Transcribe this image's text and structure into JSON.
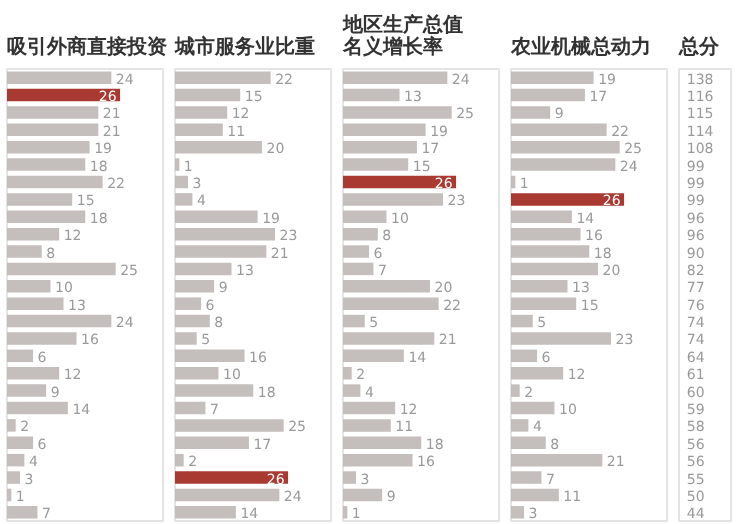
{
  "chart_data": [
    {
      "type": "bar",
      "orientation": "horizontal",
      "title": "吸引外商直接投资",
      "categories": [
        null,
        null,
        null,
        null,
        null,
        null,
        null,
        null,
        null,
        null,
        null,
        null,
        null,
        null,
        null,
        null,
        null,
        null,
        null,
        null,
        null,
        null,
        null,
        null,
        null,
        null
      ],
      "values": [
        24,
        26,
        21,
        21,
        19,
        18,
        22,
        15,
        18,
        12,
        8,
        25,
        10,
        13,
        24,
        16,
        6,
        12,
        9,
        14,
        2,
        6,
        4,
        3,
        1,
        7
      ],
      "colors": [
        "#c4bfbc",
        "#a83a32",
        "#c4bfbc",
        "#c4bfbc",
        "#c4bfbc",
        "#c4bfbc",
        "#c4bfbc",
        "#c4bfbc",
        "#c4bfbc",
        "#c4bfbc",
        "#c4bfbc",
        "#c4bfbc",
        "#c4bfbc",
        "#c4bfbc",
        "#c4bfbc",
        "#c4bfbc",
        "#c4bfbc",
        "#c4bfbc",
        "#c4bfbc",
        "#c4bfbc",
        "#c4bfbc",
        "#c4bfbc",
        "#c4bfbc",
        "#c4bfbc",
        "#c4bfbc",
        "#c4bfbc"
      ],
      "data_labels": true
    },
    {
      "type": "bar",
      "orientation": "horizontal",
      "title": "城市服务业比重",
      "categories": [
        null,
        null,
        null,
        null,
        null,
        null,
        null,
        null,
        null,
        null,
        null,
        null,
        null,
        null,
        null,
        null,
        null,
        null,
        null,
        null,
        null,
        null,
        null,
        null,
        null,
        null
      ],
      "values": [
        22,
        15,
        12,
        11,
        20,
        1,
        3,
        4,
        19,
        23,
        21,
        13,
        9,
        6,
        8,
        5,
        16,
        10,
        18,
        7,
        25,
        17,
        2,
        26,
        24,
        14
      ],
      "colors": [
        "#c4bfbc",
        "#c4bfbc",
        "#c4bfbc",
        "#c4bfbc",
        "#c4bfbc",
        "#c4bfbc",
        "#c4bfbc",
        "#c4bfbc",
        "#c4bfbc",
        "#c4bfbc",
        "#c4bfbc",
        "#c4bfbc",
        "#c4bfbc",
        "#c4bfbc",
        "#c4bfbc",
        "#c4bfbc",
        "#c4bfbc",
        "#c4bfbc",
        "#c4bfbc",
        "#c4bfbc",
        "#c4bfbc",
        "#c4bfbc",
        "#c4bfbc",
        "#a83a32",
        "#c4bfbc",
        "#c4bfbc"
      ],
      "data_labels": true
    },
    {
      "type": "bar",
      "orientation": "horizontal",
      "title": "地区生产总值名义增长率",
      "categories": [
        null,
        null,
        null,
        null,
        null,
        null,
        null,
        null,
        null,
        null,
        null,
        null,
        null,
        null,
        null,
        null,
        null,
        null,
        null,
        null,
        null,
        null,
        null,
        null,
        null,
        null
      ],
      "values": [
        24,
        13,
        25,
        19,
        17,
        15,
        26,
        23,
        10,
        8,
        6,
        7,
        20,
        22,
        5,
        21,
        14,
        2,
        4,
        12,
        11,
        18,
        16,
        3,
        9,
        1
      ],
      "colors": [
        "#c4bfbc",
        "#c4bfbc",
        "#c4bfbc",
        "#c4bfbc",
        "#c4bfbc",
        "#c4bfbc",
        "#a83a32",
        "#c4bfbc",
        "#c4bfbc",
        "#c4bfbc",
        "#c4bfbc",
        "#c4bfbc",
        "#c4bfbc",
        "#c4bfbc",
        "#c4bfbc",
        "#c4bfbc",
        "#c4bfbc",
        "#c4bfbc",
        "#c4bfbc",
        "#c4bfbc",
        "#c4bfbc",
        "#c4bfbc",
        "#c4bfbc",
        "#c4bfbc",
        "#c4bfbc",
        "#c4bfbc"
      ],
      "data_labels": true
    },
    {
      "type": "bar",
      "orientation": "horizontal",
      "title": "农业机械总动力",
      "categories": [
        null,
        null,
        null,
        null,
        null,
        null,
        null,
        null,
        null,
        null,
        null,
        null,
        null,
        null,
        null,
        null,
        null,
        null,
        null,
        null,
        null,
        null,
        null,
        null,
        null,
        null
      ],
      "values": [
        19,
        17,
        9,
        22,
        25,
        24,
        1,
        26,
        14,
        16,
        18,
        20,
        13,
        15,
        5,
        23,
        6,
        12,
        2,
        10,
        4,
        8,
        21,
        7,
        11,
        3
      ],
      "colors": [
        "#c4bfbc",
        "#c4bfbc",
        "#c4bfbc",
        "#c4bfbc",
        "#c4bfbc",
        "#c4bfbc",
        "#c4bfbc",
        "#a83a32",
        "#c4bfbc",
        "#c4bfbc",
        "#c4bfbc",
        "#c4bfbc",
        "#c4bfbc",
        "#c4bfbc",
        "#c4bfbc",
        "#c4bfbc",
        "#c4bfbc",
        "#c4bfbc",
        "#c4bfbc",
        "#c4bfbc",
        "#c4bfbc",
        "#c4bfbc",
        "#c4bfbc",
        "#c4bfbc",
        "#c4bfbc",
        "#c4bfbc"
      ],
      "data_labels": true
    },
    {
      "type": "other",
      "title": "总分",
      "values": [
        138,
        116,
        115,
        114,
        108,
        99,
        99,
        99,
        96,
        96,
        90,
        82,
        77,
        76,
        74,
        74,
        64,
        61,
        60,
        59,
        58,
        56,
        56,
        55,
        50,
        44
      ],
      "data_labels": true
    }
  ]
}
